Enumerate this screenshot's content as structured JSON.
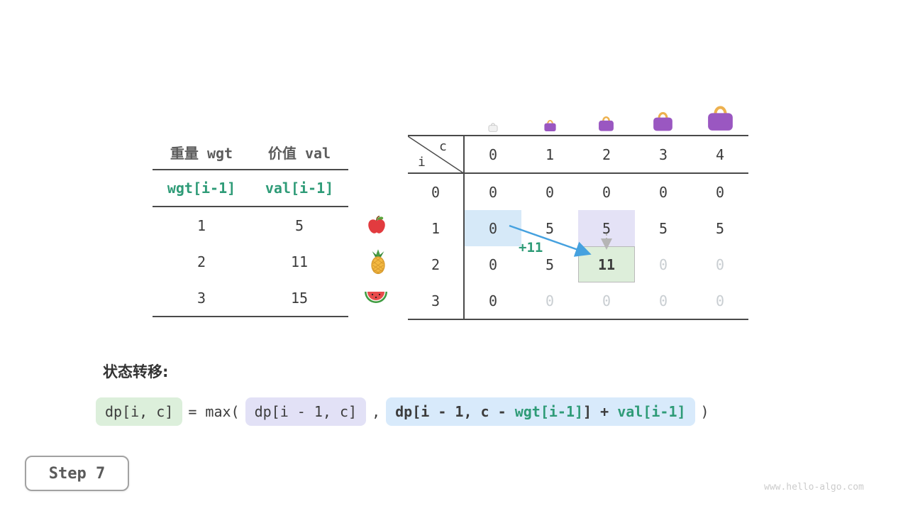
{
  "page": {
    "step_label": "Step 7",
    "watermark": "www.hello-algo.com"
  },
  "item_table": {
    "col_headers": [
      "重量 wgt",
      "价值 val"
    ],
    "var_row": [
      "wgt[i-1]",
      "val[i-1]"
    ],
    "rows": [
      {
        "wgt": "1",
        "val": "5",
        "icon": "apple"
      },
      {
        "wgt": "2",
        "val": "11",
        "icon": "pineapple"
      },
      {
        "wgt": "3",
        "val": "15",
        "icon": "watermelon"
      }
    ]
  },
  "dp_table": {
    "corner": {
      "row_var": "i",
      "col_var": "c"
    },
    "col_headers": [
      "0",
      "1",
      "2",
      "3",
      "4"
    ],
    "capacity_icons": [
      "bag-tiny",
      "bag-small",
      "bag-medium",
      "bag-large",
      "bag-xlarge"
    ],
    "rows": [
      {
        "header": "0",
        "cells": [
          {
            "v": "0",
            "state": "normal"
          },
          {
            "v": "0",
            "state": "normal"
          },
          {
            "v": "0",
            "state": "normal"
          },
          {
            "v": "0",
            "state": "normal"
          },
          {
            "v": "0",
            "state": "normal"
          }
        ]
      },
      {
        "header": "1",
        "cells": [
          {
            "v": "0",
            "state": "hl-blue"
          },
          {
            "v": "5",
            "state": "normal"
          },
          {
            "v": "5",
            "state": "hl-lavender"
          },
          {
            "v": "5",
            "state": "normal"
          },
          {
            "v": "5",
            "state": "normal"
          }
        ]
      },
      {
        "header": "2",
        "cells": [
          {
            "v": "0",
            "state": "normal"
          },
          {
            "v": "5",
            "state": "normal"
          },
          {
            "v": "11",
            "state": "hl-green"
          },
          {
            "v": "0",
            "state": "faded"
          },
          {
            "v": "0",
            "state": "faded"
          }
        ]
      },
      {
        "header": "3",
        "cells": [
          {
            "v": "0",
            "state": "normal"
          },
          {
            "v": "0",
            "state": "faded"
          },
          {
            "v": "0",
            "state": "faded"
          },
          {
            "v": "0",
            "state": "faded"
          },
          {
            "v": "0",
            "state": "faded"
          }
        ]
      }
    ],
    "annotation": "+11"
  },
  "transition": {
    "label": "状态转移:",
    "lhs": "dp[i, c]",
    "equals": "= max(",
    "arg1": "dp[i - 1, c]",
    "comma": ",",
    "arg2_prefix": "dp[i - 1, c - ",
    "arg2_wgt": "wgt[i-1]",
    "arg2_mid": "] + ",
    "arg2_val": "val[i-1]",
    "close": ")"
  },
  "colors": {
    "teal_accent": "#2e9b77",
    "arrow_blue": "#45a1df",
    "annotation_green": "#2e9b77",
    "highlight_blue": "#d6e9f8",
    "highlight_lavender": "#e4e2f6",
    "highlight_green": "#ddeeda",
    "faded_text": "#c9ced2",
    "bag_purple": "#9a57c1",
    "bag_handle_gold": "#edb14f"
  }
}
